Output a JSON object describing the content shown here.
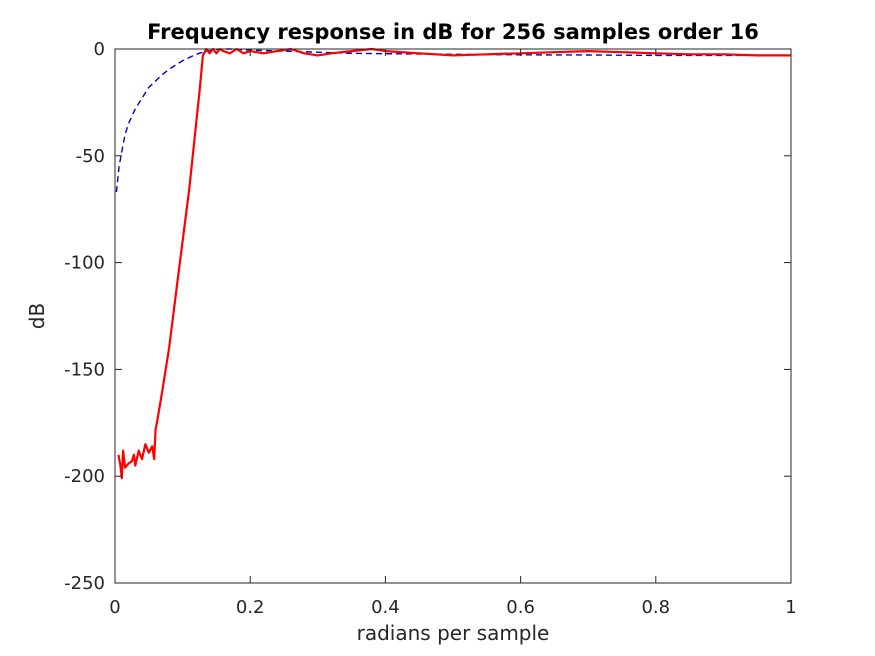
{
  "chart_data": {
    "type": "line",
    "title": "Frequency response in dB for 256 samples order 16",
    "xlabel": "radians per sample",
    "ylabel": "dB",
    "xlim": [
      0,
      1
    ],
    "ylim": [
      -250,
      0
    ],
    "xticks": [
      0,
      0.2,
      0.4,
      0.6,
      0.8,
      1
    ],
    "xtick_labels": [
      "0",
      "0.2",
      "0.4",
      "0.6",
      "0.8",
      "1"
    ],
    "yticks": [
      0,
      -50,
      -100,
      -150,
      -200,
      -250
    ],
    "ytick_labels": [
      "0",
      "-50",
      "-100",
      "-150",
      "-200",
      "-250"
    ],
    "grid": false,
    "legend": "none",
    "series": [
      {
        "color": "#0000cc",
        "style": "dashed",
        "x": [
          0.002,
          0.006,
          0.01,
          0.015,
          0.02,
          0.03,
          0.04,
          0.05,
          0.06,
          0.07,
          0.08,
          0.09,
          0.1,
          0.11,
          0.12,
          0.13,
          0.14,
          0.15,
          0.16,
          0.17,
          0.2,
          0.25,
          0.3,
          0.35,
          0.4,
          0.5,
          0.6,
          0.7,
          0.8,
          0.9,
          1.0
        ],
        "y": [
          -67,
          -55,
          -48,
          -40,
          -35,
          -28,
          -23,
          -18,
          -15,
          -12,
          -9.5,
          -7.5,
          -5.5,
          -4,
          -2.5,
          -1.5,
          -0.8,
          -0.3,
          0,
          0,
          -0.5,
          -1,
          -1.5,
          -2,
          -2.2,
          -2.5,
          -2.7,
          -2.8,
          -3,
          -3,
          -3
        ]
      },
      {
        "color": "#ff0000",
        "style": "solid",
        "x": [
          0.005,
          0.008,
          0.01,
          0.012,
          0.015,
          0.02,
          0.025,
          0.028,
          0.03,
          0.035,
          0.04,
          0.045,
          0.05,
          0.055,
          0.058,
          0.06,
          0.062,
          0.07,
          0.08,
          0.09,
          0.1,
          0.11,
          0.12,
          0.125,
          0.13,
          0.135,
          0.14,
          0.145,
          0.15,
          0.155,
          0.16,
          0.17,
          0.18,
          0.19,
          0.2,
          0.22,
          0.24,
          0.26,
          0.28,
          0.3,
          0.32,
          0.35,
          0.38,
          0.4,
          0.45,
          0.5,
          0.55,
          0.6,
          0.65,
          0.7,
          0.75,
          0.8,
          0.85,
          0.9,
          0.95,
          1.0
        ],
        "y": [
          -190,
          -195,
          -201,
          -188,
          -196,
          -194,
          -193,
          -190,
          -195,
          -188,
          -192,
          -185,
          -189,
          -186,
          -192,
          -178,
          -175,
          -160,
          -140,
          -115,
          -90,
          -65,
          -35,
          -20,
          -3,
          0,
          -2,
          0,
          -2,
          0,
          -1,
          -2,
          0,
          -2,
          -1,
          -2,
          -1,
          0,
          -2,
          -3,
          -2,
          -1,
          0,
          -1,
          -2,
          -3,
          -2.5,
          -2,
          -1.5,
          -1,
          -1.5,
          -2,
          -2.5,
          -2.5,
          -3,
          -3
        ]
      }
    ]
  }
}
